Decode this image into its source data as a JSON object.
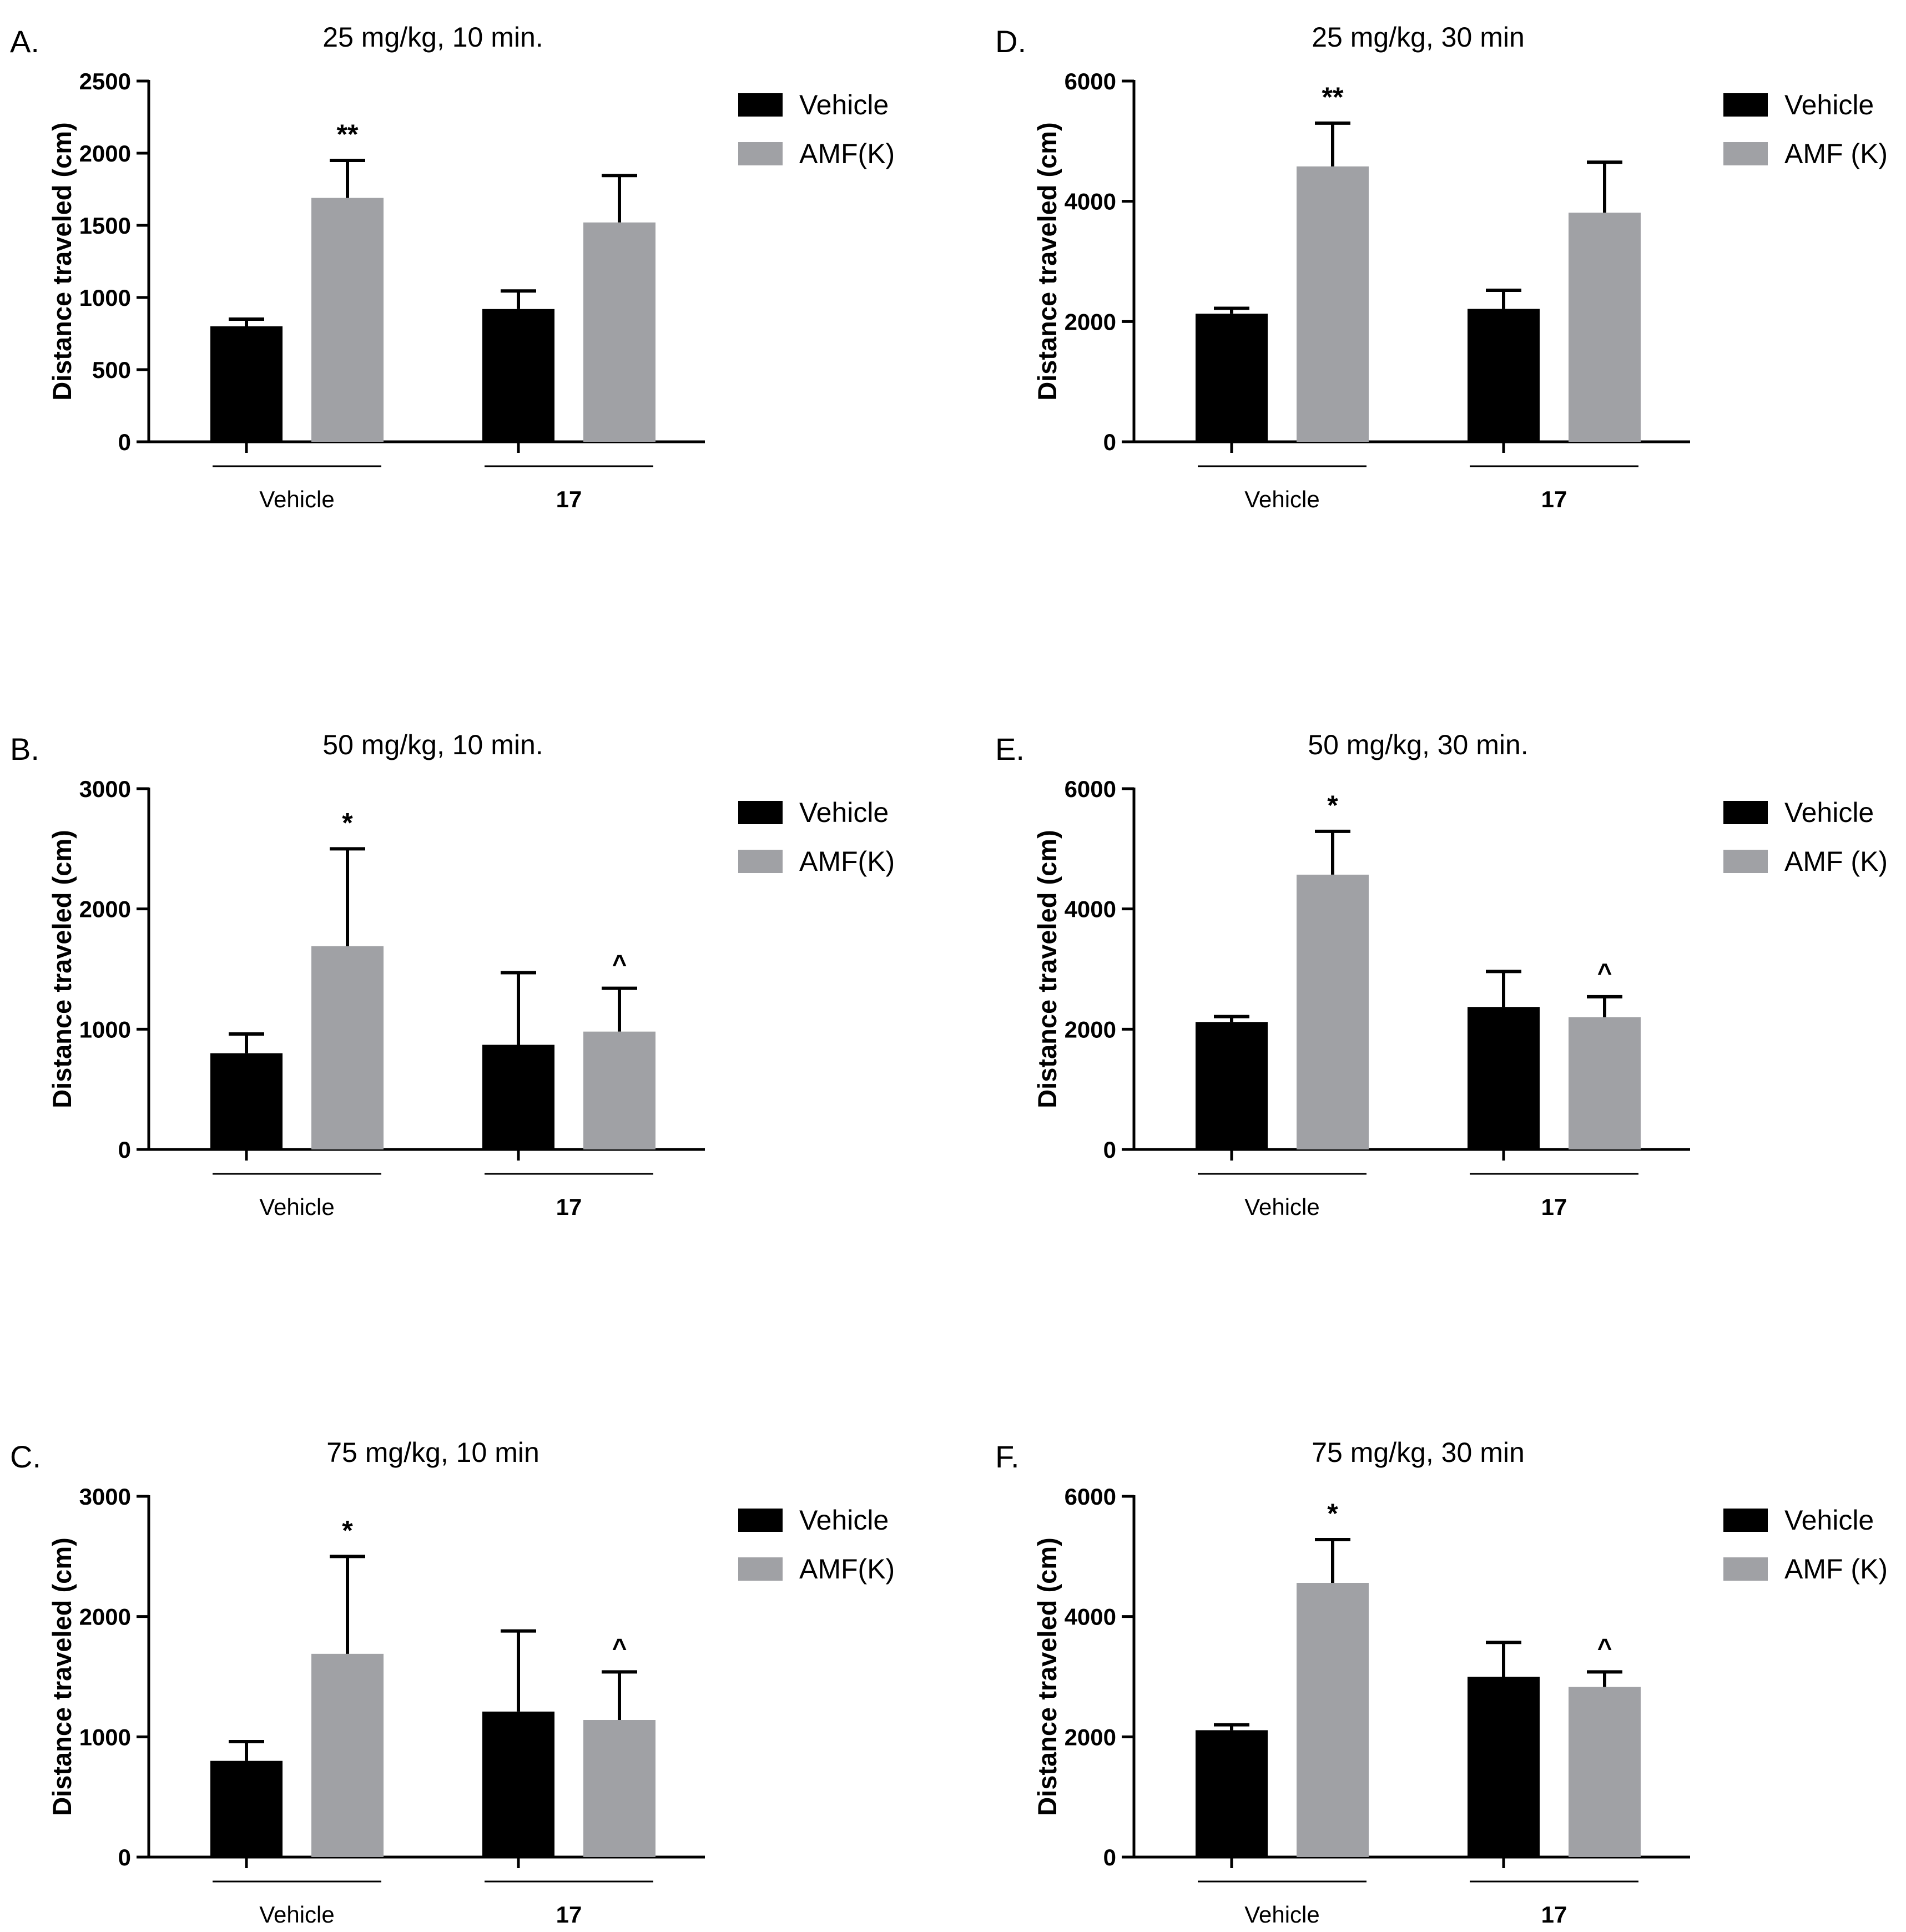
{
  "colors": {
    "vehicle": "#000000",
    "amf": "#a0a1a5",
    "axis": "#000000"
  },
  "chart_data": [
    {
      "type": "bar",
      "panel": "A.",
      "title": "25 mg/kg, 10 min.",
      "ylabel": "Distance traveled (cm)",
      "ylim": [
        0,
        2500
      ],
      "yticks": [
        0,
        500,
        1000,
        1500,
        2000,
        2500
      ],
      "groups": [
        "Vehicle",
        "17"
      ],
      "group_bold": [
        false,
        true
      ],
      "legend": [
        "Vehicle",
        "AMF(K)"
      ],
      "series": [
        {
          "name": "Vehicle",
          "values": [
            800,
            920
          ],
          "errors": [
            50,
            125
          ],
          "marks": [
            "",
            ""
          ]
        },
        {
          "name": "AMF(K)",
          "values": [
            1690,
            1520
          ],
          "errors": [
            260,
            325
          ],
          "marks": [
            "**",
            ""
          ]
        }
      ]
    },
    {
      "type": "bar",
      "panel": "B.",
      "title": "50 mg/kg, 10 min.",
      "ylabel": "Distance traveled (cm)",
      "ylim": [
        0,
        3000
      ],
      "yticks": [
        0,
        1000,
        2000,
        3000
      ],
      "groups": [
        "Vehicle",
        "17"
      ],
      "group_bold": [
        false,
        true
      ],
      "legend": [
        "Vehicle",
        "AMF(K)"
      ],
      "series": [
        {
          "name": "Vehicle",
          "values": [
            800,
            870
          ],
          "errors": [
            160,
            600
          ],
          "marks": [
            "",
            ""
          ]
        },
        {
          "name": "AMF(K)",
          "values": [
            1690,
            980
          ],
          "errors": [
            810,
            360
          ],
          "marks": [
            "*",
            "^"
          ]
        }
      ]
    },
    {
      "type": "bar",
      "panel": "C.",
      "title": "75 mg/kg, 10 min",
      "ylabel": "Distance traveled (cm)",
      "ylim": [
        0,
        3000
      ],
      "yticks": [
        0,
        1000,
        2000,
        3000
      ],
      "groups": [
        "Vehicle",
        "17"
      ],
      "group_bold": [
        false,
        true
      ],
      "legend": [
        "Vehicle",
        "AMF(K)"
      ],
      "series": [
        {
          "name": "Vehicle",
          "values": [
            800,
            1210
          ],
          "errors": [
            160,
            670
          ],
          "marks": [
            "",
            ""
          ]
        },
        {
          "name": "AMF(K)",
          "values": [
            1690,
            1140
          ],
          "errors": [
            810,
            400
          ],
          "marks": [
            "*",
            "^"
          ]
        }
      ]
    },
    {
      "type": "bar",
      "panel": "D.",
      "title": "25 mg/kg, 30 min",
      "ylabel": "Distance traveled (cm)",
      "ylim": [
        0,
        6000
      ],
      "yticks": [
        0,
        2000,
        4000,
        6000
      ],
      "groups": [
        "Vehicle",
        "17"
      ],
      "group_bold": [
        false,
        true
      ],
      "legend": [
        "Vehicle",
        "AMF (K)"
      ],
      "series": [
        {
          "name": "Vehicle",
          "values": [
            2130,
            2210
          ],
          "errors": [
            90,
            310
          ],
          "marks": [
            "",
            ""
          ]
        },
        {
          "name": "AMF (K)",
          "values": [
            4580,
            3810
          ],
          "errors": [
            720,
            840
          ],
          "marks": [
            "**",
            ""
          ]
        }
      ]
    },
    {
      "type": "bar",
      "panel": "E.",
      "title": "50 mg/kg, 30 min.",
      "ylabel": "Distance traveled (cm)",
      "ylim": [
        0,
        6000
      ],
      "yticks": [
        0,
        2000,
        4000,
        6000
      ],
      "groups": [
        "Vehicle",
        "17"
      ],
      "group_bold": [
        false,
        true
      ],
      "legend": [
        "Vehicle",
        "AMF (K)"
      ],
      "series": [
        {
          "name": "Vehicle",
          "values": [
            2120,
            2370
          ],
          "errors": [
            90,
            590
          ],
          "marks": [
            "",
            ""
          ]
        },
        {
          "name": "AMF (K)",
          "values": [
            4570,
            2200
          ],
          "errors": [
            720,
            340
          ],
          "marks": [
            "*",
            "^"
          ]
        }
      ]
    },
    {
      "type": "bar",
      "panel": "F.",
      "title": "75 mg/kg, 30 min",
      "ylabel": "Distance traveled (cm)",
      "ylim": [
        0,
        6000
      ],
      "yticks": [
        0,
        2000,
        4000,
        6000
      ],
      "groups": [
        "Vehicle",
        "17"
      ],
      "group_bold": [
        false,
        true
      ],
      "legend": [
        "Vehicle",
        "AMF (K)"
      ],
      "series": [
        {
          "name": "Vehicle",
          "values": [
            2110,
            3000
          ],
          "errors": [
            90,
            570
          ],
          "marks": [
            "",
            ""
          ]
        },
        {
          "name": "AMF (K)",
          "values": [
            4560,
            2830
          ],
          "errors": [
            720,
            250
          ],
          "marks": [
            "*",
            "^"
          ]
        }
      ]
    }
  ]
}
